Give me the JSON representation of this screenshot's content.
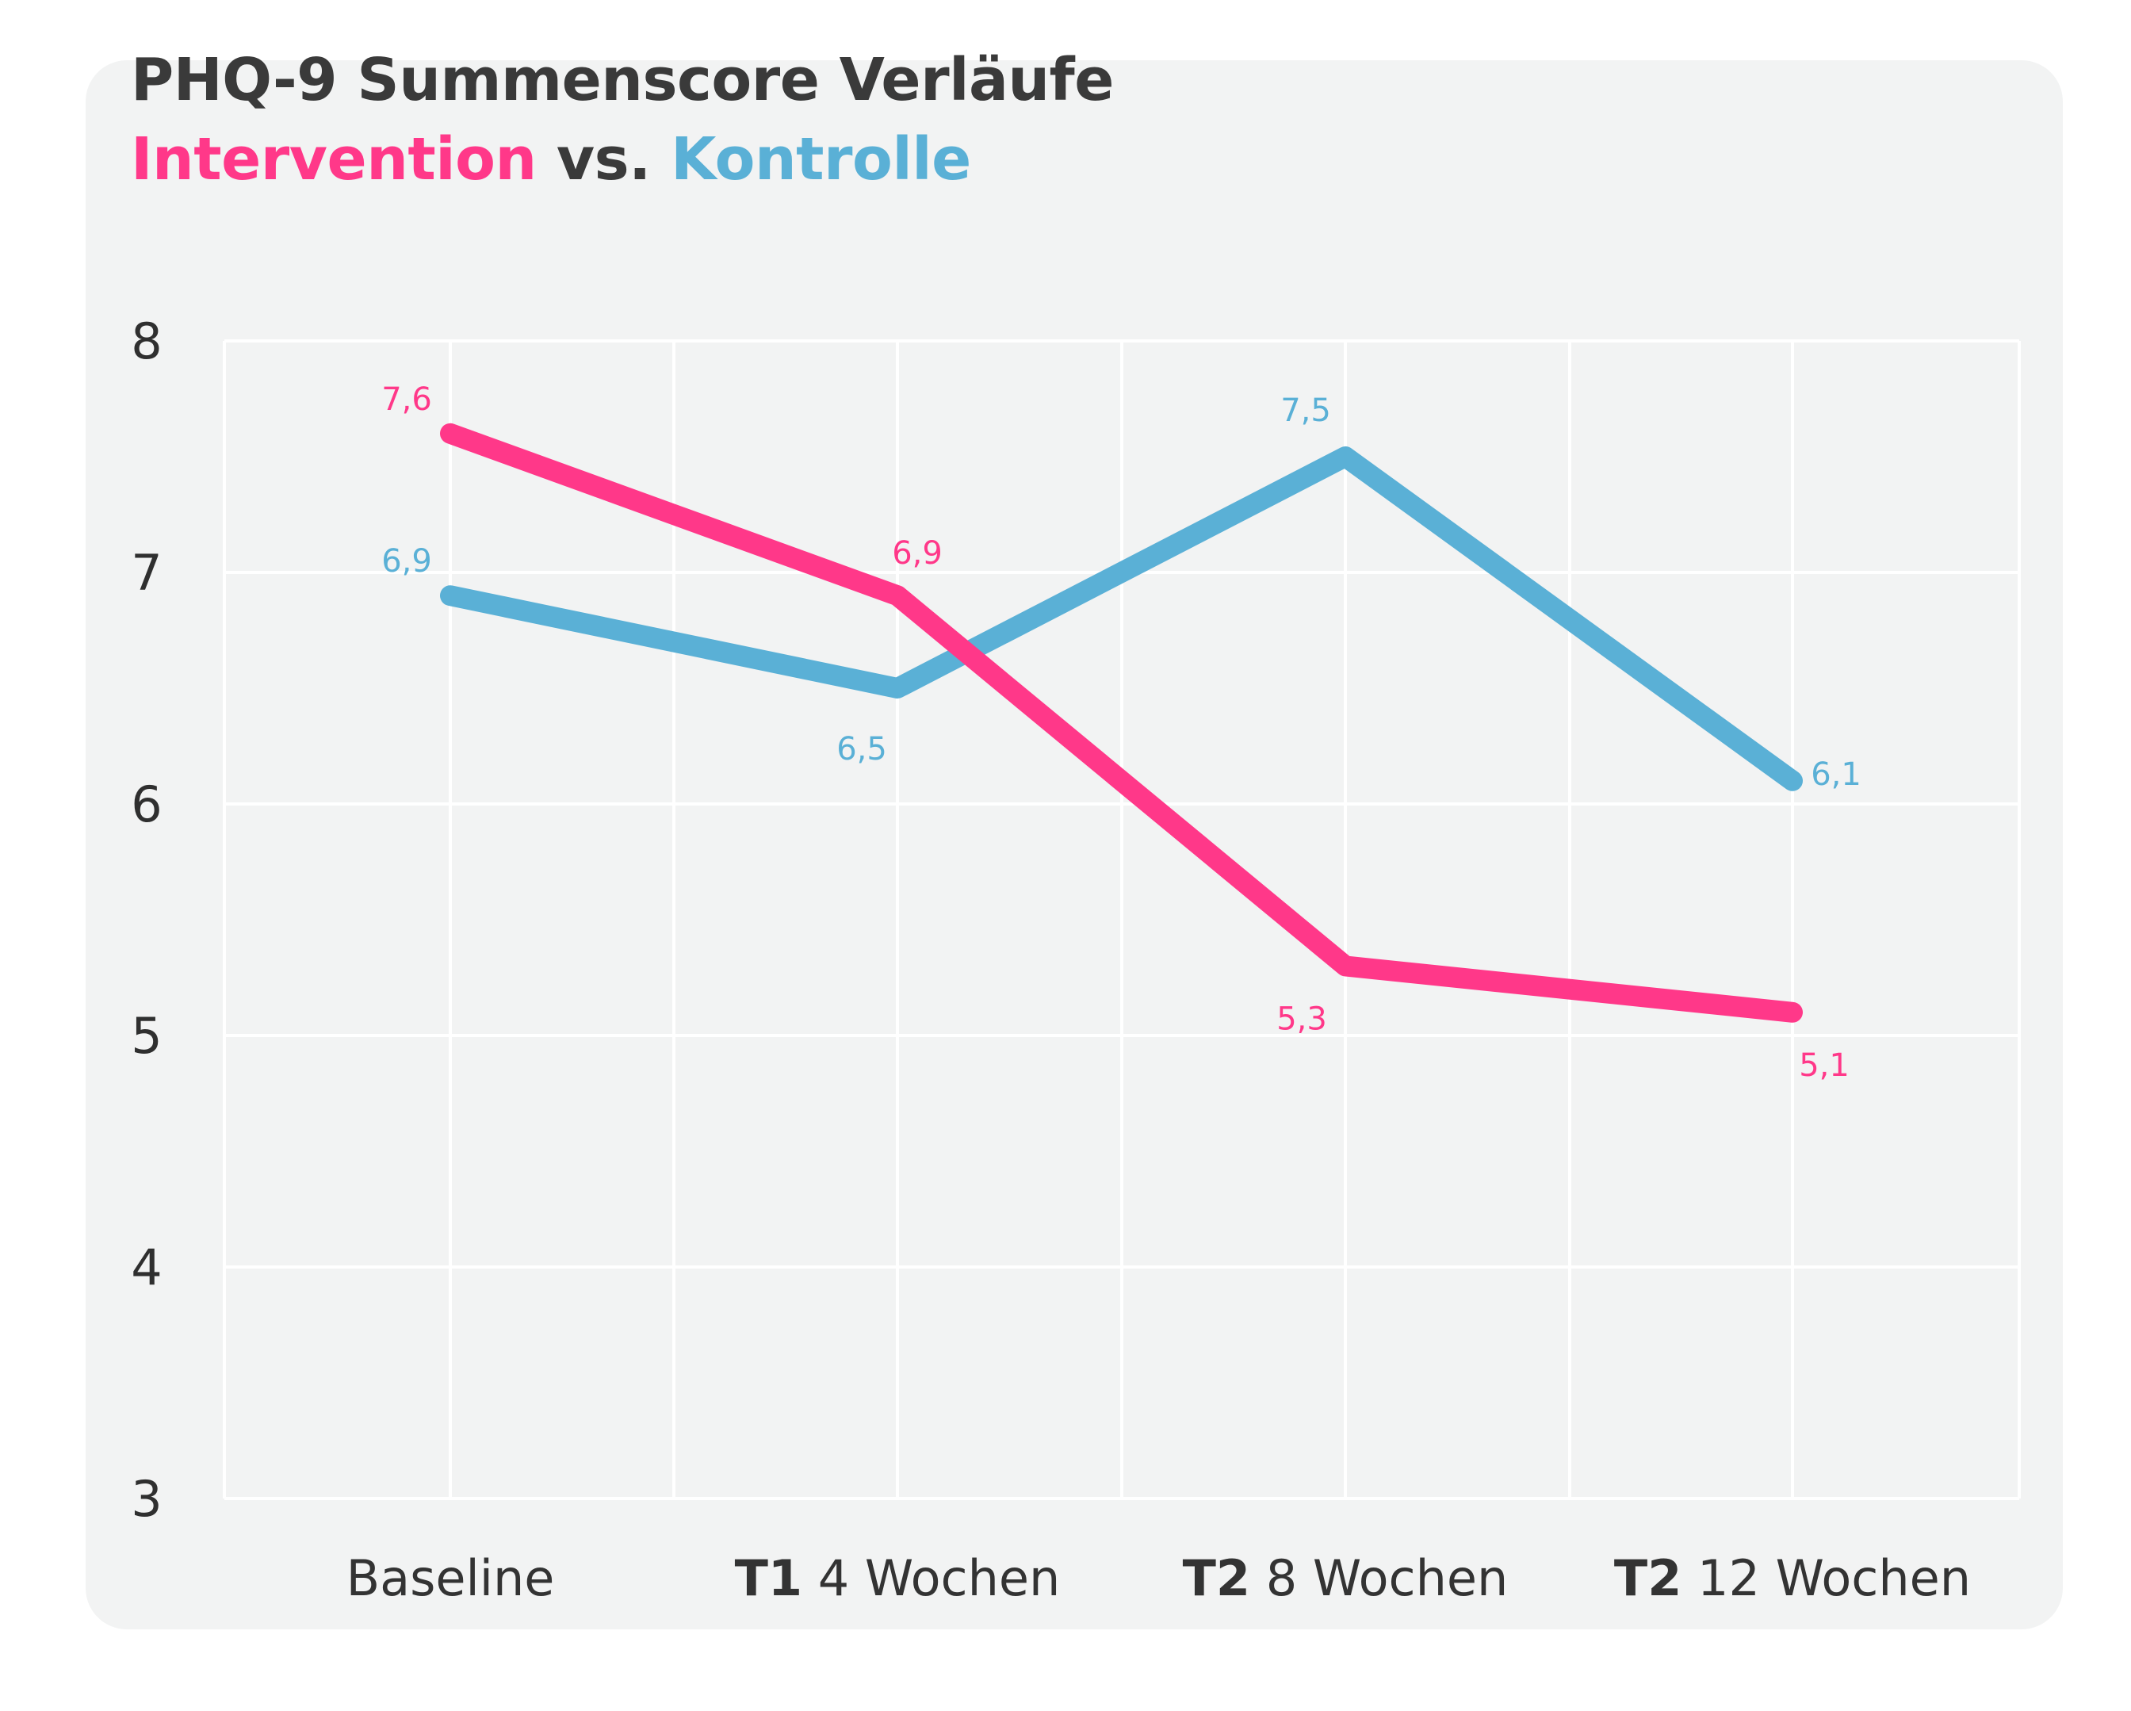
{
  "colors": {
    "intervention": "#ff3889",
    "kontrolle": "#5ab0d6",
    "text": "#3a3a3a",
    "card": "#f2f3f3",
    "grid": "#ffffff"
  },
  "header": {
    "title": "PHQ-9 Summenscore Verläufe",
    "subtitle_part1": "Intervention",
    "subtitle_part2": " vs. ",
    "subtitle_part3": "Kontrolle"
  },
  "chart_data": {
    "type": "line",
    "title": "PHQ-9 Summenscore Verläufe",
    "subtitle": "Intervention vs. Kontrolle",
    "categories": [
      {
        "bold": "",
        "rest": "Baseline"
      },
      {
        "bold": "T1",
        "rest": " 4 Wochen"
      },
      {
        "bold": "T2",
        "rest": " 8 Wochen"
      },
      {
        "bold": "T2",
        "rest": " 12 Wochen"
      }
    ],
    "yticks": [
      "3",
      "4",
      "5",
      "6",
      "7",
      "8"
    ],
    "ylim": [
      3,
      8
    ],
    "grid": true,
    "series": [
      {
        "name": "Intervention",
        "color": "#ff3889",
        "values": [
          7.6,
          6.9,
          5.3,
          5.1
        ],
        "labels": [
          "7,6",
          "6,9",
          "5,3",
          "5,1"
        ]
      },
      {
        "name": "Kontrolle",
        "color": "#5ab0d6",
        "values": [
          6.9,
          6.5,
          7.5,
          6.1
        ],
        "labels": [
          "6,9",
          "6,5",
          "7,5",
          "6,1"
        ]
      }
    ]
  }
}
